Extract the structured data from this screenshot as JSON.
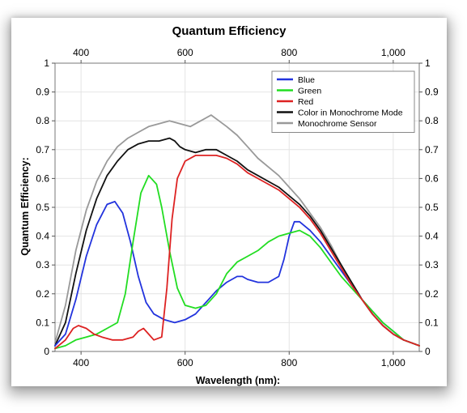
{
  "chart_data": {
    "type": "line",
    "title": "Quantum Efficiency",
    "xlabel": "Wavelength (nm):",
    "ylabel": "Quantum Efficiency:",
    "xlim": [
      350,
      1050
    ],
    "ylim": [
      0,
      1
    ],
    "x_ticks": [
      400,
      600,
      800,
      1000
    ],
    "x_tick_labels": [
      "400",
      "600",
      "800",
      "1,000"
    ],
    "y_ticks": [
      0,
      0.1,
      0.2,
      0.3,
      0.4,
      0.5,
      0.6,
      0.7,
      0.8,
      0.9,
      1
    ],
    "y_tick_labels": [
      "0",
      "0.1",
      "0.2",
      "0.3",
      "0.4",
      "0.5",
      "0.6",
      "0.7",
      "0.8",
      "0.9",
      "1"
    ],
    "right_y_tick_labels": [
      "0",
      "0.1",
      "0.2",
      "0.3",
      "0.4",
      "0.5",
      "0.6",
      "0.7",
      "0.8",
      "0.9",
      "1"
    ],
    "grid": true,
    "legend_position": "top-right",
    "series": [
      {
        "name": "Blue",
        "color": "#2233dd",
        "x": [
          350,
          370,
          390,
          410,
          430,
          450,
          465,
          480,
          495,
          510,
          525,
          540,
          560,
          580,
          600,
          620,
          640,
          660,
          680,
          700,
          710,
          720,
          740,
          760,
          780,
          790,
          800,
          810,
          820,
          840,
          860,
          880,
          900,
          920,
          940,
          960,
          980,
          1000,
          1020,
          1050
        ],
        "y": [
          0.02,
          0.06,
          0.18,
          0.33,
          0.44,
          0.51,
          0.52,
          0.48,
          0.38,
          0.26,
          0.17,
          0.13,
          0.11,
          0.1,
          0.11,
          0.13,
          0.17,
          0.21,
          0.24,
          0.26,
          0.26,
          0.25,
          0.24,
          0.24,
          0.26,
          0.32,
          0.4,
          0.45,
          0.45,
          0.42,
          0.38,
          0.33,
          0.28,
          0.23,
          0.18,
          0.14,
          0.1,
          0.07,
          0.04,
          0.02
        ]
      },
      {
        "name": "Green",
        "color": "#22dd22",
        "x": [
          350,
          370,
          390,
          410,
          430,
          450,
          470,
          485,
          500,
          515,
          530,
          545,
          555,
          570,
          585,
          600,
          620,
          640,
          660,
          680,
          700,
          720,
          740,
          760,
          780,
          800,
          820,
          840,
          860,
          880,
          900,
          920,
          940,
          960,
          980,
          1000,
          1020,
          1050
        ],
        "y": [
          0.01,
          0.02,
          0.04,
          0.05,
          0.06,
          0.08,
          0.1,
          0.2,
          0.38,
          0.55,
          0.61,
          0.58,
          0.5,
          0.35,
          0.22,
          0.16,
          0.15,
          0.16,
          0.2,
          0.27,
          0.31,
          0.33,
          0.35,
          0.38,
          0.4,
          0.41,
          0.42,
          0.4,
          0.36,
          0.31,
          0.26,
          0.22,
          0.18,
          0.14,
          0.1,
          0.07,
          0.04,
          0.02
        ]
      },
      {
        "name": "Red",
        "color": "#dd2222",
        "x": [
          350,
          370,
          385,
          395,
          410,
          425,
          440,
          460,
          480,
          500,
          510,
          520,
          530,
          540,
          555,
          565,
          575,
          585,
          600,
          620,
          640,
          660,
          680,
          700,
          720,
          740,
          760,
          780,
          800,
          820,
          840,
          860,
          880,
          900,
          920,
          940,
          960,
          980,
          1000,
          1020,
          1050
        ],
        "y": [
          0.01,
          0.04,
          0.08,
          0.09,
          0.08,
          0.06,
          0.05,
          0.04,
          0.04,
          0.05,
          0.07,
          0.08,
          0.06,
          0.04,
          0.05,
          0.22,
          0.46,
          0.6,
          0.66,
          0.68,
          0.68,
          0.68,
          0.67,
          0.65,
          0.62,
          0.6,
          0.58,
          0.56,
          0.53,
          0.5,
          0.46,
          0.41,
          0.35,
          0.29,
          0.23,
          0.18,
          0.13,
          0.09,
          0.06,
          0.04,
          0.02
        ]
      },
      {
        "name": "Color in Monochrome Mode",
        "color": "#111111",
        "x": [
          350,
          370,
          390,
          410,
          430,
          450,
          470,
          490,
          510,
          530,
          550,
          570,
          580,
          590,
          600,
          620,
          640,
          660,
          680,
          700,
          720,
          740,
          760,
          780,
          800,
          820,
          840,
          860,
          880,
          900,
          920,
          940,
          960,
          980,
          1000,
          1020,
          1050
        ],
        "y": [
          0.02,
          0.1,
          0.27,
          0.42,
          0.53,
          0.61,
          0.66,
          0.7,
          0.72,
          0.73,
          0.73,
          0.74,
          0.73,
          0.71,
          0.7,
          0.69,
          0.7,
          0.7,
          0.68,
          0.66,
          0.63,
          0.61,
          0.59,
          0.57,
          0.54,
          0.51,
          0.47,
          0.42,
          0.36,
          0.3,
          0.24,
          0.18,
          0.13,
          0.09,
          0.06,
          0.04,
          0.02
        ]
      },
      {
        "name": "Monochrome Sensor",
        "color": "#999999",
        "x": [
          350,
          370,
          390,
          410,
          430,
          450,
          470,
          490,
          510,
          530,
          550,
          570,
          590,
          610,
          630,
          650,
          665,
          680,
          700,
          720,
          740,
          760,
          780,
          800,
          820,
          840,
          860,
          880,
          900,
          920,
          940,
          960,
          980,
          1000,
          1020,
          1050
        ],
        "y": [
          0.03,
          0.16,
          0.35,
          0.49,
          0.59,
          0.66,
          0.71,
          0.74,
          0.76,
          0.78,
          0.79,
          0.8,
          0.79,
          0.78,
          0.8,
          0.82,
          0.8,
          0.78,
          0.75,
          0.71,
          0.67,
          0.64,
          0.61,
          0.57,
          0.53,
          0.48,
          0.43,
          0.37,
          0.3,
          0.24,
          0.18,
          0.13,
          0.09,
          0.06,
          0.04,
          0.02
        ]
      }
    ]
  }
}
